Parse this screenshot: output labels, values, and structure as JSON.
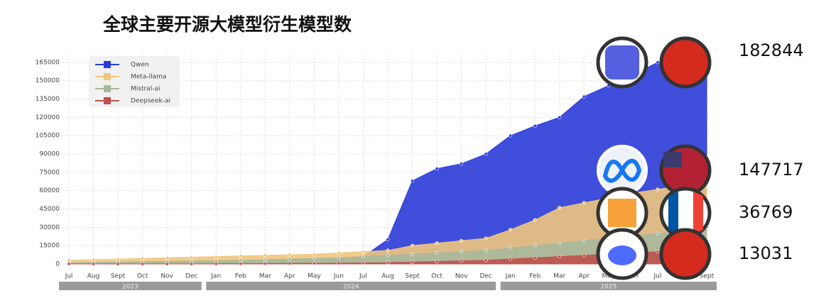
{
  "chart_data": {
    "type": "area",
    "title": "全球主要开源大模型衍生模型数",
    "categories": [
      "Jul",
      "Aug",
      "Sept",
      "Oct",
      "Nov",
      "Dec",
      "Jan",
      "Feb",
      "Mar",
      "Apr",
      "May",
      "Jun",
      "Jul",
      "Aug",
      "Sept",
      "Oct",
      "Nov",
      "Dec",
      "Jan",
      "Feb",
      "Mar",
      "Apr",
      "May",
      "Jun",
      "Jul",
      "Aug",
      "Sept"
    ],
    "groups": [
      {
        "label": "2023",
        "count": 6
      },
      {
        "label": "2024",
        "count": 12
      },
      {
        "label": "2025",
        "count": 9
      }
    ],
    "series": [
      {
        "name": "Qwen",
        "color": "#2b3bd8",
        "values": [
          100,
          200,
          300,
          500,
          700,
          900,
          1200,
          1500,
          2000,
          2500,
          3000,
          4000,
          6000,
          20000,
          68000,
          78000,
          82000,
          90000,
          105000,
          113000,
          120000,
          137000,
          146000,
          155000,
          165000,
          170000,
          172000
        ]
      },
      {
        "name": "Meta-llama",
        "color": "#f0c67c",
        "values": [
          3000,
          3500,
          4000,
          4500,
          5000,
          5500,
          6000,
          6500,
          7000,
          7500,
          8000,
          9000,
          10000,
          11000,
          15000,
          17000,
          19000,
          21000,
          28000,
          36000,
          46000,
          50000,
          54000,
          58000,
          61000,
          64000,
          66000
        ]
      },
      {
        "name": "Mistral-ai",
        "color": "#a9b89c",
        "values": [
          1000,
          1200,
          1500,
          1800,
          2000,
          2300,
          2600,
          3000,
          3500,
          4000,
          4500,
          5000,
          6000,
          7000,
          8000,
          9000,
          10000,
          11000,
          13000,
          15000,
          17000,
          19000,
          21000,
          23000,
          25000,
          27000,
          30000
        ]
      },
      {
        "name": "Deepseek-ai",
        "color": "#c0504d",
        "values": [
          0,
          0,
          0,
          0,
          0,
          0,
          100,
          200,
          300,
          400,
          500,
          600,
          800,
          1000,
          1500,
          2000,
          2500,
          3000,
          4000,
          5000,
          6000,
          7000,
          8000,
          9000,
          10000,
          11000,
          12000
        ]
      }
    ],
    "ylim": [
      -4650,
      172500
    ],
    "yticks": [
      0,
      15000,
      30000,
      45000,
      60000,
      75000,
      90000,
      105000,
      120000,
      135000,
      150000,
      165000
    ],
    "grid": true,
    "legend": "upper left",
    "side_labels": [
      "182844",
      "147717",
      "36769",
      "13031"
    ]
  }
}
